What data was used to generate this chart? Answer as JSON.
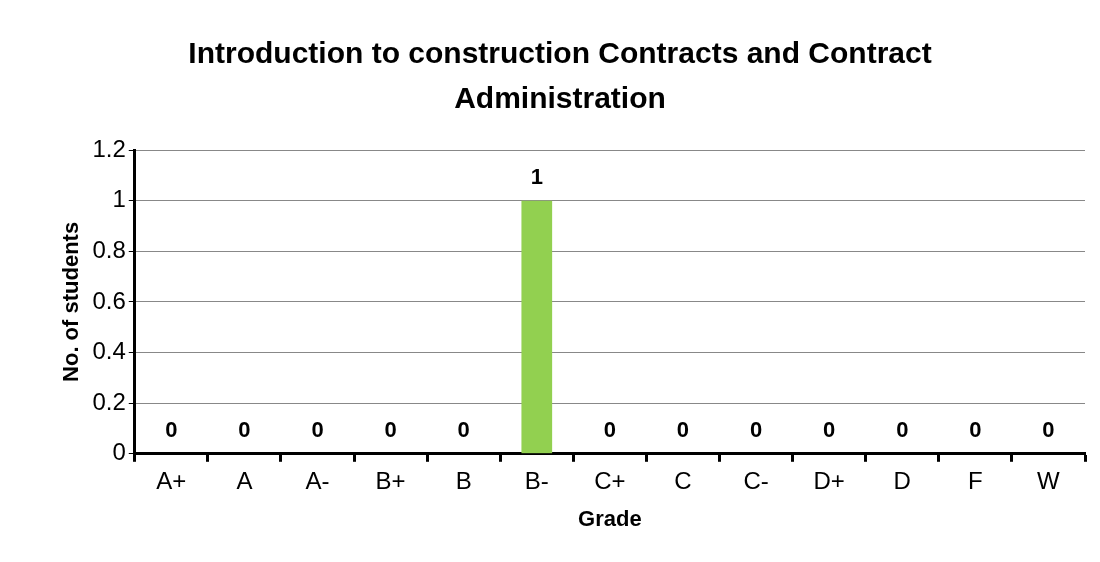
{
  "chart_data": {
    "type": "bar",
    "title": "Introduction to construction Contracts and Contract Administration",
    "xlabel": "Grade",
    "ylabel": "No. of students",
    "categories": [
      "A+",
      "A",
      "A-",
      "B+",
      "B",
      "B-",
      "C+",
      "C",
      "C-",
      "D+",
      "D",
      "F",
      "W"
    ],
    "values": [
      0,
      0,
      0,
      0,
      0,
      1,
      0,
      0,
      0,
      0,
      0,
      0,
      0
    ],
    "color": "#92d050",
    "ylim": [
      0,
      1.2
    ],
    "yticks": [
      0,
      0.2,
      0.4,
      0.6,
      0.8,
      1,
      1.2
    ],
    "grid": "y",
    "legend": false,
    "data_labels": true
  }
}
